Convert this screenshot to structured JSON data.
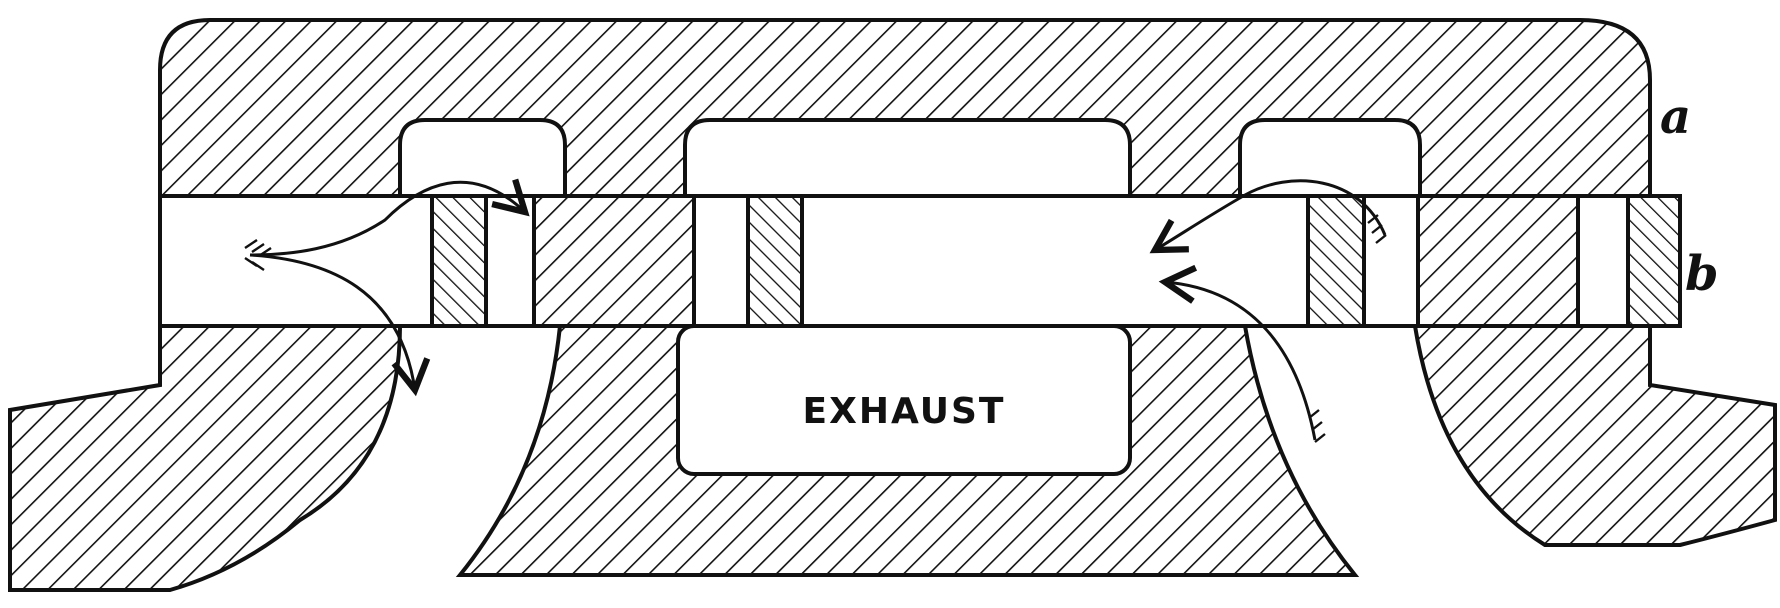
{
  "labels": {
    "casing": "a",
    "slide_valve": "b",
    "exhaust": "EXHAUST"
  },
  "colors": {
    "ink": "#111111",
    "paper": "#ffffff"
  }
}
